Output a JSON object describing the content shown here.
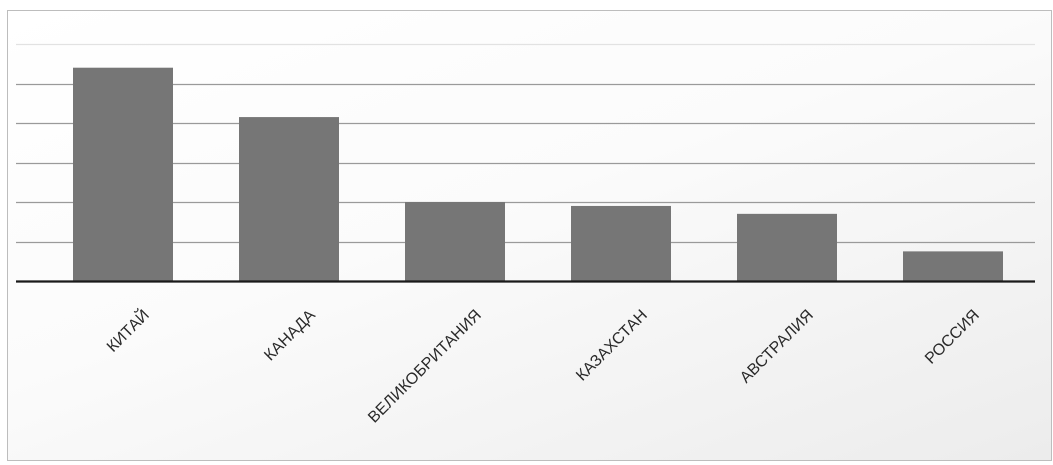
{
  "chart_data": {
    "type": "bar",
    "title": "",
    "xlabel": "",
    "ylabel": "",
    "categories": [
      "КИТАЙ",
      "КАНАДА",
      "ВЕЛИКОБРИТАНИЯ",
      "КАЗАХСТАН",
      "АВСТРАЛИЯ",
      "РОССИЯ"
    ],
    "values": [
      5.4,
      4.15,
      2.0,
      1.9,
      1.7,
      0.75
    ],
    "ylim": [
      0,
      6
    ],
    "ytick_step": 1,
    "grid": true,
    "y_tick_labels_shown": false,
    "legend": "none",
    "bar_color": "#767676",
    "axis_color": "#1a1a1a",
    "grid_color": "#9a9a9a"
  }
}
